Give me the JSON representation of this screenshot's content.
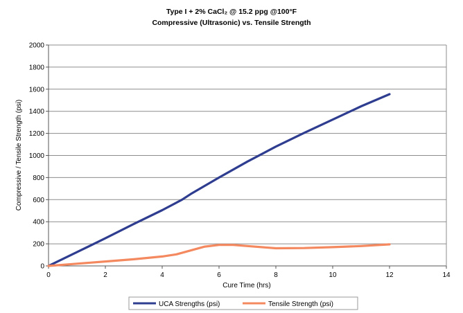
{
  "chart_data": {
    "type": "line",
    "title": "Type I + 2% CaCl₂ @ 15.2 ppg @100°F",
    "subtitle": "Compressive (Ultrasonic) vs. Tensile Strength",
    "xlabel": "Cure Time (hrs)",
    "ylabel": "Compressive / Tensile Strength (psi)",
    "xlim": [
      0,
      14
    ],
    "ylim": [
      0,
      2000
    ],
    "xticks": [
      0,
      2,
      4,
      6,
      8,
      10,
      12,
      14
    ],
    "yticks": [
      0,
      200,
      400,
      600,
      800,
      1000,
      1200,
      1400,
      1600,
      1800,
      2000
    ],
    "grid": "horizontal",
    "legend_position": "bottom",
    "series": [
      {
        "name": "UCA Strengths (psi)",
        "color": "#2e3d8f",
        "x": [
          0,
          1,
          2,
          3,
          4,
          4.7,
          5,
          6,
          7,
          8,
          9,
          10,
          11,
          12
        ],
        "y": [
          0,
          125,
          250,
          380,
          505,
          600,
          650,
          800,
          945,
          1080,
          1205,
          1325,
          1445,
          1555
        ]
      },
      {
        "name": "Tensile Strength (psi)",
        "color": "#f4885f",
        "x": [
          0,
          1,
          2,
          3,
          4,
          4.5,
          5,
          5.5,
          6,
          6.5,
          7,
          8,
          9,
          10,
          11,
          12
        ],
        "y": [
          0,
          20,
          40,
          60,
          85,
          105,
          140,
          175,
          190,
          190,
          180,
          160,
          162,
          170,
          180,
          195
        ]
      }
    ]
  }
}
